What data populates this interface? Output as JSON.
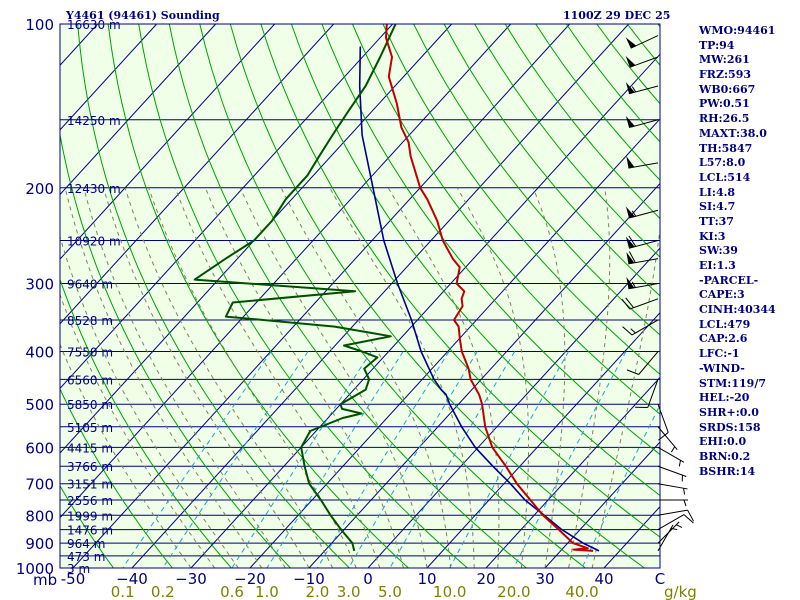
{
  "header": {
    "station": "Y4461 (94461) Sounding",
    "time": "1100Z 29 DEC 25"
  },
  "indices": [
    "WMO:94461",
    "TP:94",
    "MW:261",
    "FRZ:593",
    "WB0:667",
    "PW:0.51",
    "RH:26.5",
    "MAXT:38.0",
    "TH:5847",
    "L57:8.0",
    "LCL:514",
    "LI:4.8",
    "SI:4.7",
    "TT:37",
    "KI:3",
    "SW:39",
    "EI:1.3",
    "-PARCEL-",
    "CAPE:3",
    "CINH:40344",
    "LCL:479",
    "CAP:2.6",
    "LFC:-1",
    "-WIND-",
    "STM:119/7",
    "HEL:-20",
    "SHR+:0.0",
    "SRDS:158",
    "EHI:0.0",
    "BRN:0.2",
    "BSHR:14"
  ],
  "colors": {
    "background": "#f0ffe8",
    "isobar": "#000080",
    "isotherm": "#000080",
    "dry_adiabat": "#00a000",
    "moist_adiabat": "#808060",
    "mixing_ratio": "#20a0d0",
    "temperature": "#c00000",
    "dewpoint": "#005000",
    "parcel": "#000090",
    "text": "#000080",
    "mixing_label": "#808000"
  },
  "chart_data": {
    "type": "skew-t",
    "title": "Y4461 (94461) Sounding",
    "time": "1100Z 29 DEC 25",
    "pressure_axis": {
      "unit": "mb",
      "ticks": [
        100,
        200,
        300,
        400,
        500,
        600,
        700,
        800,
        900,
        1000
      ],
      "range": [
        1000,
        100
      ],
      "scale": "log"
    },
    "temperature_axis": {
      "unit": "C",
      "ticks": [
        -50,
        -40,
        -30,
        -20,
        -10,
        0,
        10,
        20,
        30,
        40
      ],
      "tick_labels": [
        "-50",
        "−40",
        "−30",
        "−20",
        "−10",
        "0",
        "10",
        "20",
        "30",
        "40"
      ]
    },
    "mixing_ratio_axis": {
      "unit": "g/kg",
      "values": [
        0.1,
        0.2,
        0.6,
        1.0,
        2.0,
        3.0,
        5.0,
        10.0,
        20.0,
        40.0
      ],
      "tick_labels": [
        "0.1",
        "0.2",
        "0.6",
        "1.0",
        "2.0",
        "3.0",
        "5.0",
        "10.0",
        "20.0",
        "40.0"
      ]
    },
    "height_labels": [
      {
        "p": 100,
        "label": "16630 m"
      },
      {
        "p": 150,
        "label": "14250 m"
      },
      {
        "p": 200,
        "label": "12430 m"
      },
      {
        "p": 250,
        "label": "10920 m"
      },
      {
        "p": 300,
        "label": "9640 m"
      },
      {
        "p": 350,
        "label": "8528 m"
      },
      {
        "p": 400,
        "label": "7550 m"
      },
      {
        "p": 450,
        "label": "6560 m"
      },
      {
        "p": 500,
        "label": "5850 m"
      },
      {
        "p": 550,
        "label": "5105 m"
      },
      {
        "p": 600,
        "label": "4415 m"
      },
      {
        "p": 650,
        "label": "3766 m"
      },
      {
        "p": 700,
        "label": "3151 m"
      },
      {
        "p": 750,
        "label": "2556 m"
      },
      {
        "p": 800,
        "label": "1999 m"
      },
      {
        "p": 850,
        "label": "1476 m"
      },
      {
        "p": 900,
        "label": "964 m"
      },
      {
        "p": 950,
        "label": "473 m"
      },
      {
        "p": 1000,
        "label": "3 m"
      }
    ],
    "temperature": {
      "name": "Temperature",
      "points": [
        [
          930,
          35.5
        ],
        [
          925,
          32.0
        ],
        [
          920,
          34.2
        ],
        [
          900,
          30.9
        ],
        [
          850,
          26.4
        ],
        [
          800,
          21.5
        ],
        [
          750,
          17.0
        ],
        [
          700,
          12.2
        ],
        [
          650,
          7.6
        ],
        [
          600,
          2.4
        ],
        [
          550,
          -2.0
        ],
        [
          500,
          -6.0
        ],
        [
          480,
          -8.0
        ],
        [
          450,
          -11.8
        ],
        [
          430,
          -13.8
        ],
        [
          400,
          -17.6
        ],
        [
          380,
          -19.8
        ],
        [
          360,
          -22.0
        ],
        [
          350,
          -23.8
        ],
        [
          330,
          -24.5
        ],
        [
          320,
          -25.8
        ],
        [
          310,
          -26.5
        ],
        [
          300,
          -29.0
        ],
        [
          280,
          -31.0
        ],
        [
          270,
          -33.5
        ],
        [
          250,
          -38.0
        ],
        [
          230,
          -42.0
        ],
        [
          210,
          -47.0
        ],
        [
          200,
          -50.0
        ],
        [
          175,
          -56.5
        ],
        [
          165,
          -59.0
        ],
        [
          155,
          -62.5
        ],
        [
          140,
          -67.0
        ],
        [
          125,
          -72.5
        ],
        [
          115,
          -75.0
        ],
        [
          106,
          -79.0
        ],
        [
          100,
          -81.0
        ]
      ]
    },
    "dewpoint": {
      "name": "Dewpoint",
      "points": [
        [
          930,
          -5.0
        ],
        [
          900,
          -6.5
        ],
        [
          850,
          -10.5
        ],
        [
          800,
          -14.5
        ],
        [
          750,
          -18.5
        ],
        [
          700,
          -23.0
        ],
        [
          650,
          -26.5
        ],
        [
          600,
          -30.0
        ],
        [
          560,
          -31.0
        ],
        [
          530,
          -27.5
        ],
        [
          520,
          -25.0
        ],
        [
          510,
          -29.0
        ],
        [
          500,
          -30.0
        ],
        [
          470,
          -28.0
        ],
        [
          450,
          -29.0
        ],
        [
          430,
          -31.5
        ],
        [
          410,
          -31.0
        ],
        [
          400,
          -34.5
        ],
        [
          390,
          -38.5
        ],
        [
          375,
          -32.0
        ],
        [
          360,
          -43.0
        ],
        [
          345,
          -63.0
        ],
        [
          325,
          -64.0
        ],
        [
          310,
          -45.0
        ],
        [
          295,
          -74.0
        ],
        [
          270,
          -72.0
        ],
        [
          250,
          -70.0
        ],
        [
          230,
          -70.0
        ],
        [
          210,
          -71.0
        ],
        [
          190,
          -71.0
        ],
        [
          175,
          -72.0
        ],
        [
          160,
          -73.0
        ],
        [
          145,
          -74.0
        ],
        [
          130,
          -75.0
        ],
        [
          115,
          -77.0
        ],
        [
          100,
          -79.5
        ]
      ]
    },
    "parcel": {
      "name": "Parcel",
      "points": [
        [
          930,
          36.5
        ],
        [
          900,
          32.6
        ],
        [
          850,
          26.9
        ],
        [
          800,
          21.7
        ],
        [
          750,
          16.1
        ],
        [
          700,
          11.1
        ],
        [
          650,
          5.4
        ],
        [
          600,
          -0.5
        ],
        [
          550,
          -6.0
        ],
        [
          500,
          -11.5
        ],
        [
          480,
          -13.6
        ],
        [
          470,
          -15.2
        ],
        [
          450,
          -18.0
        ],
        [
          400,
          -24.5
        ],
        [
          350,
          -31.0
        ],
        [
          300,
          -39.0
        ],
        [
          250,
          -48.0
        ],
        [
          200,
          -58.0
        ],
        [
          160,
          -68.0
        ],
        [
          130,
          -76.0
        ],
        [
          110,
          -82.0
        ]
      ]
    },
    "wind_barbs": [
      {
        "p": 930,
        "dir": 30,
        "kt": 5
      },
      {
        "p": 900,
        "dir": 45,
        "kt": 5
      },
      {
        "p": 850,
        "dir": 60,
        "kt": 10
      },
      {
        "p": 800,
        "dir": 80,
        "kt": 10
      },
      {
        "p": 750,
        "dir": 90,
        "kt": 5
      },
      {
        "p": 700,
        "dir": 100,
        "kt": 5
      },
      {
        "p": 650,
        "dir": 110,
        "kt": 5
      },
      {
        "p": 600,
        "dir": 120,
        "kt": 5
      },
      {
        "p": 550,
        "dir": 140,
        "kt": 5
      },
      {
        "p": 500,
        "dir": 160,
        "kt": 10
      },
      {
        "p": 450,
        "dir": 200,
        "kt": 10
      },
      {
        "p": 400,
        "dir": 220,
        "kt": 10
      },
      {
        "p": 350,
        "dir": 240,
        "kt": 15
      },
      {
        "p": 320,
        "dir": 250,
        "kt": 20
      },
      {
        "p": 300,
        "dir": 260,
        "kt": 55
      },
      {
        "p": 270,
        "dir": 260,
        "kt": 60
      },
      {
        "p": 250,
        "dir": 255,
        "kt": 60
      },
      {
        "p": 220,
        "dir": 255,
        "kt": 55
      },
      {
        "p": 180,
        "dir": 260,
        "kt": 50
      },
      {
        "p": 150,
        "dir": 255,
        "kt": 50
      },
      {
        "p": 130,
        "dir": 255,
        "kt": 55
      },
      {
        "p": 115,
        "dir": 250,
        "kt": 50
      },
      {
        "p": 105,
        "dir": 245,
        "kt": 50
      }
    ],
    "grid": true
  }
}
